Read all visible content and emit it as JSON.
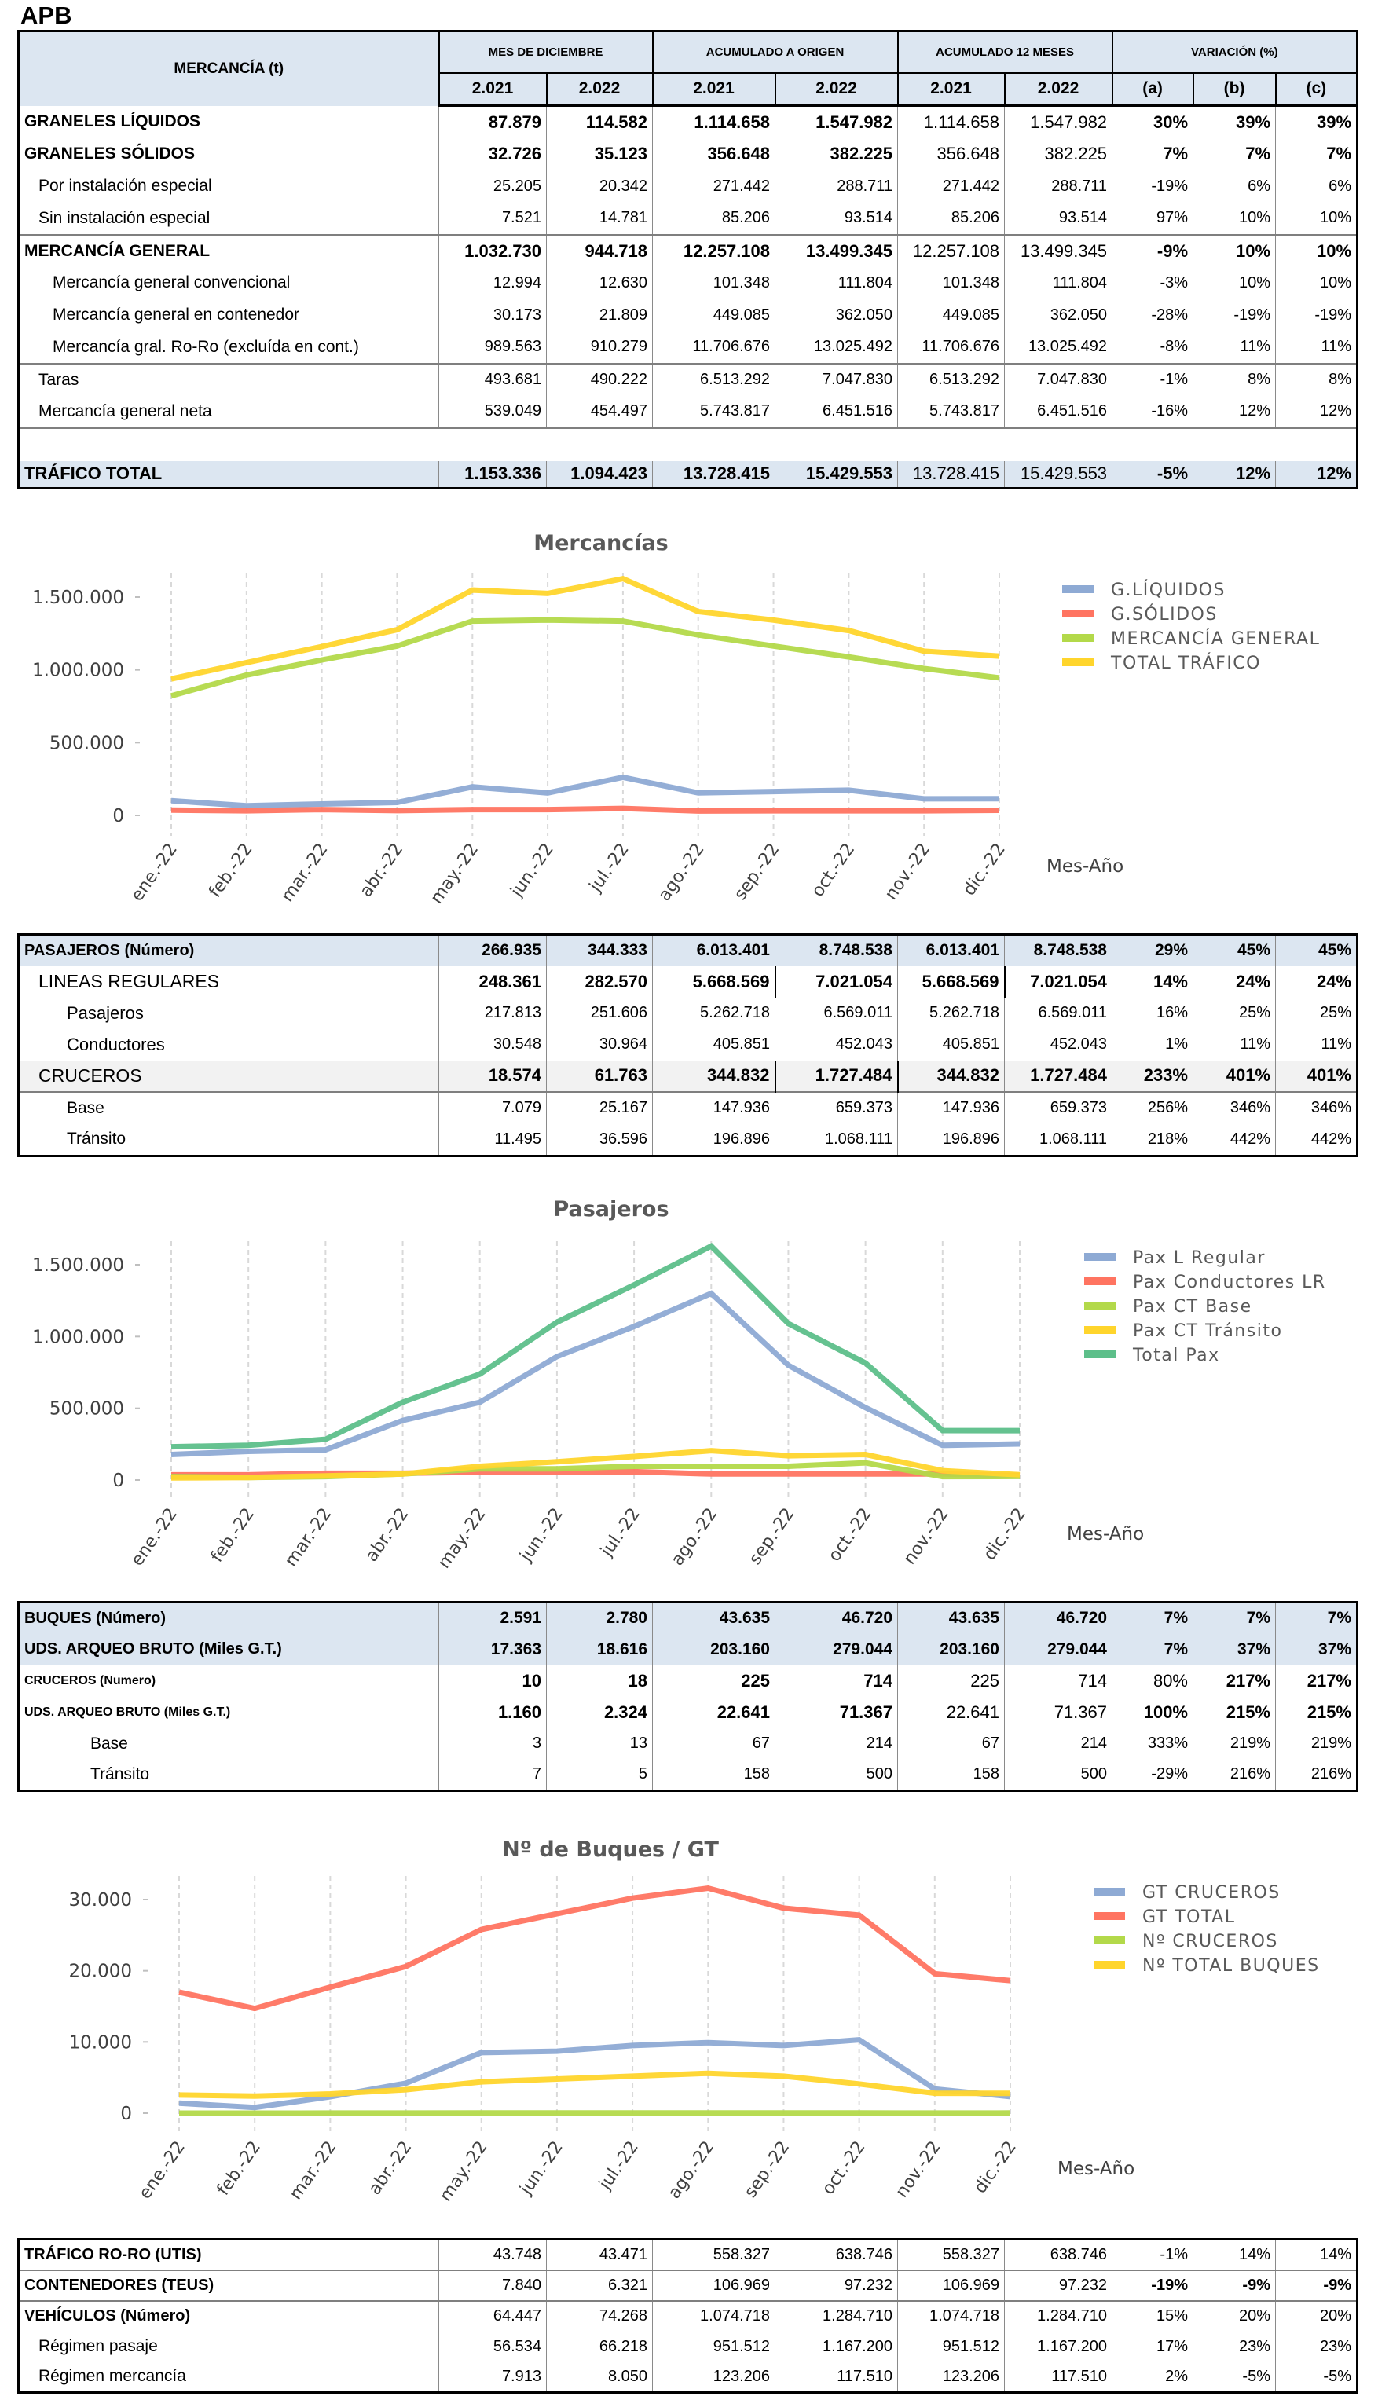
{
  "page_title": "APB",
  "merc_table": {
    "header": {
      "label": "MERCANCÍA (t)",
      "groups": [
        "MES DE DICIEMBRE",
        "ACUMULADO  A  ORIGEN",
        "ACUMULADO 12 MESES",
        "VARIACIÓN (%)"
      ],
      "subcols": [
        "2.021",
        "2.022",
        "2.021",
        "2.022",
        "2.021",
        "2.022",
        "(a)",
        "(b)",
        "(c)"
      ]
    },
    "rows": [
      {
        "label": "GRANELES LÍQUIDOS",
        "values": [
          "87.879",
          "114.582",
          "1.114.658",
          "1.547.982",
          "1.114.658",
          "1.547.982",
          "30%",
          "39%",
          "39%"
        ]
      },
      {
        "label": "GRANELES SÓLIDOS",
        "values": [
          "32.726",
          "35.123",
          "356.648",
          "382.225",
          "356.648",
          "382.225",
          "7%",
          "7%",
          "7%"
        ]
      },
      {
        "label": "Por instalación especial",
        "values": [
          "25.205",
          "20.342",
          "271.442",
          "288.711",
          "271.442",
          "288.711",
          "-19%",
          "6%",
          "6%"
        ]
      },
      {
        "label": "Sin instalación especial",
        "values": [
          "7.521",
          "14.781",
          "85.206",
          "93.514",
          "85.206",
          "93.514",
          "97%",
          "10%",
          "10%"
        ]
      },
      {
        "label": "MERCANCÍA GENERAL",
        "values": [
          "1.032.730",
          "944.718",
          "12.257.108",
          "13.499.345",
          "12.257.108",
          "13.499.345",
          "-9%",
          "10%",
          "10%"
        ]
      },
      {
        "label": "Mercancía general convencional",
        "values": [
          "12.994",
          "12.630",
          "101.348",
          "111.804",
          "101.348",
          "111.804",
          "-3%",
          "10%",
          "10%"
        ]
      },
      {
        "label": "Mercancía general en contenedor",
        "values": [
          "30.173",
          "21.809",
          "449.085",
          "362.050",
          "449.085",
          "362.050",
          "-28%",
          "-19%",
          "-19%"
        ]
      },
      {
        "label": "Mercancía gral. Ro-Ro (excluída en cont.)",
        "values": [
          "989.563",
          "910.279",
          "11.706.676",
          "13.025.492",
          "11.706.676",
          "13.025.492",
          "-8%",
          "11%",
          "11%"
        ]
      },
      {
        "label": "Taras",
        "values": [
          "493.681",
          "490.222",
          "6.513.292",
          "7.047.830",
          "6.513.292",
          "7.047.830",
          "-1%",
          "8%",
          "8%"
        ]
      },
      {
        "label": "Mercancía general neta",
        "values": [
          "539.049",
          "454.497",
          "5.743.817",
          "6.451.516",
          "5.743.817",
          "6.451.516",
          "-16%",
          "12%",
          "12%"
        ]
      },
      {
        "label": "TRÁFICO TOTAL",
        "values": [
          "1.153.336",
          "1.094.423",
          "13.728.415",
          "15.429.553",
          "13.728.415",
          "15.429.553",
          "-5%",
          "12%",
          "12%"
        ]
      }
    ]
  },
  "pax_table": {
    "rows": [
      {
        "label": "PASAJEROS (Número)",
        "values": [
          "266.935",
          "344.333",
          "6.013.401",
          "8.748.538",
          "6.013.401",
          "8.748.538",
          "29%",
          "45%",
          "45%"
        ]
      },
      {
        "label": "LINEAS REGULARES",
        "values": [
          "248.361",
          "282.570",
          "5.668.569",
          "7.021.054",
          "5.668.569",
          "7.021.054",
          "14%",
          "24%",
          "24%"
        ]
      },
      {
        "label": "Pasajeros",
        "values": [
          "217.813",
          "251.606",
          "5.262.718",
          "6.569.011",
          "5.262.718",
          "6.569.011",
          "16%",
          "25%",
          "25%"
        ]
      },
      {
        "label": "Conductores",
        "values": [
          "30.548",
          "30.964",
          "405.851",
          "452.043",
          "405.851",
          "452.043",
          "1%",
          "11%",
          "11%"
        ]
      },
      {
        "label": "CRUCEROS",
        "values": [
          "18.574",
          "61.763",
          "344.832",
          "1.727.484",
          "344.832",
          "1.727.484",
          "233%",
          "401%",
          "401%"
        ]
      },
      {
        "label": "Base",
        "values": [
          "7.079",
          "25.167",
          "147.936",
          "659.373",
          "147.936",
          "659.373",
          "256%",
          "346%",
          "346%"
        ]
      },
      {
        "label": "Tránsito",
        "values": [
          "11.495",
          "36.596",
          "196.896",
          "1.068.111",
          "196.896",
          "1.068.111",
          "218%",
          "442%",
          "442%"
        ]
      }
    ]
  },
  "buques_table": {
    "rows": [
      {
        "label": "BUQUES (Número)",
        "values": [
          "2.591",
          "2.780",
          "43.635",
          "46.720",
          "43.635",
          "46.720",
          "7%",
          "7%",
          "7%"
        ]
      },
      {
        "label": "UDS. ARQUEO BRUTO  (Miles G.T.)",
        "values": [
          "17.363",
          "18.616",
          "203.160",
          "279.044",
          "203.160",
          "279.044",
          "7%",
          "37%",
          "37%"
        ]
      },
      {
        "label": "CRUCEROS (Numero)",
        "values": [
          "10",
          "18",
          "225",
          "714",
          "225",
          "714",
          "80%",
          "217%",
          "217%"
        ]
      },
      {
        "label": "UDS. ARQUEO BRUTO  (Miles G.T.)",
        "values": [
          "1.160",
          "2.324",
          "22.641",
          "71.367",
          "22.641",
          "71.367",
          "100%",
          "215%",
          "215%"
        ]
      },
      {
        "label": "Base",
        "values": [
          "3",
          "13",
          "67",
          "214",
          "67",
          "214",
          "333%",
          "219%",
          "219%"
        ]
      },
      {
        "label": "Tránsito",
        "values": [
          "7",
          "5",
          "158",
          "500",
          "158",
          "500",
          "-29%",
          "216%",
          "216%"
        ]
      }
    ]
  },
  "otros_table": {
    "rows": [
      {
        "label": "TRÁFICO RO-RO (UTIS)",
        "values": [
          "43.748",
          "43.471",
          "558.327",
          "638.746",
          "558.327",
          "638.746",
          "-1%",
          "14%",
          "14%"
        ]
      },
      {
        "label": "CONTENEDORES (TEUS)",
        "values": [
          "7.840",
          "6.321",
          "106.969",
          "97.232",
          "106.969",
          "97.232",
          "-19%",
          "-9%",
          "-9%"
        ]
      },
      {
        "label": "VEHÍCULOS (Número)",
        "values": [
          "64.447",
          "74.268",
          "1.074.718",
          "1.284.710",
          "1.074.718",
          "1.284.710",
          "15%",
          "20%",
          "20%"
        ]
      },
      {
        "label": "Régimen pasaje",
        "values": [
          "56.534",
          "66.218",
          "951.512",
          "1.167.200",
          "951.512",
          "1.167.200",
          "17%",
          "23%",
          "23%"
        ]
      },
      {
        "label": "Régimen  mercancía",
        "values": [
          "7.913",
          "8.050",
          "123.206",
          "117.510",
          "123.206",
          "117.510",
          "2%",
          "-5%",
          "-5%"
        ]
      }
    ]
  },
  "chart_data": [
    {
      "type": "line",
      "title": "Mercancías",
      "xlabel": "Mes-Año",
      "ylabel": "",
      "categories": [
        "ene.-22",
        "feb.-22",
        "mar.-22",
        "abr.-22",
        "may.-22",
        "jun.-22",
        "jul.-22",
        "ago.-22",
        "sep.-22",
        "oct.-22",
        "nov.-22",
        "dic.-22"
      ],
      "ylim": [
        0,
        1750000
      ],
      "yticks": [
        0,
        500000,
        1000000,
        1500000
      ],
      "ytick_labels": [
        "0",
        "500.000",
        "1.000.000",
        "1.500.000"
      ],
      "grid": "vertical dashed",
      "legend_position": "right",
      "series": [
        {
          "name": "G.LÍQUIDOS",
          "color": "#8eaad4",
          "values": [
            101000,
            66000,
            78000,
            89000,
            196000,
            155000,
            262000,
            155000,
            164000,
            173000,
            114000,
            114582
          ]
        },
        {
          "name": "G.SÓLIDOS",
          "color": "#ff7461",
          "values": [
            36000,
            32000,
            40000,
            33000,
            40000,
            40000,
            48000,
            30000,
            32000,
            32000,
            32000,
            35123
          ]
        },
        {
          "name": "MERCANCÍA GENERAL",
          "color": "#b3d94a",
          "values": [
            822000,
            964000,
            1068000,
            1164000,
            1335000,
            1342000,
            1335000,
            1240000,
            1164000,
            1089000,
            1009000,
            944718
          ]
        },
        {
          "name": "TOTAL TRÁFICO",
          "color": "#ffd52c",
          "values": [
            938000,
            1050000,
            1160000,
            1276000,
            1548000,
            1525000,
            1626000,
            1400000,
            1342000,
            1270000,
            1128000,
            1094423
          ]
        }
      ]
    },
    {
      "type": "line",
      "title": "Pasajeros",
      "xlabel": "Mes-Año",
      "ylabel": "",
      "categories": [
        "ene.-22",
        "feb.-22",
        "mar.-22",
        "abr.-22",
        "may.-22",
        "jun.-22",
        "jul.-22",
        "ago.-22",
        "sep.-22",
        "oct.-22",
        "nov.-22",
        "dic.-22"
      ],
      "ylim": [
        0,
        1750000
      ],
      "yticks": [
        0,
        500000,
        1000000,
        1500000
      ],
      "ytick_labels": [
        "0",
        "500.000",
        "1.000.000",
        "1.500.000"
      ],
      "grid": "vertical dashed",
      "legend_position": "right",
      "series": [
        {
          "name": "Pax L Regular",
          "color": "#8eaad4",
          "values": [
            178000,
            200000,
            211000,
            415000,
            542000,
            860000,
            1070000,
            1300000,
            800000,
            505000,
            242000,
            251606
          ]
        },
        {
          "name": "Pax Conductores LR",
          "color": "#ff7461",
          "values": [
            36000,
            36000,
            47000,
            47000,
            55000,
            55000,
            58000,
            42000,
            42000,
            42000,
            42000,
            30964
          ]
        },
        {
          "name": "Pax CT Base",
          "color": "#b3d94a",
          "values": [
            24000,
            18000,
            24000,
            42000,
            78000,
            78000,
            96000,
            96000,
            96000,
            120000,
            24000,
            25167
          ]
        },
        {
          "name": "Pax CT Tránsito",
          "color": "#ffd52c",
          "values": [
            15000,
            18000,
            29000,
            42000,
            96000,
            127000,
            164000,
            205000,
            169000,
            178000,
            65000,
            36596
          ]
        },
        {
          "name": "Total Pax",
          "color": "#5dbf8a",
          "values": [
            232000,
            242000,
            284000,
            542000,
            738000,
            1100000,
            1360000,
            1630000,
            1090000,
            815000,
            345000,
            344333
          ]
        }
      ]
    },
    {
      "type": "line",
      "title": "Nº de Buques / GT",
      "xlabel": "Mes-Año",
      "ylabel": "",
      "categories": [
        "ene.-22",
        "feb.-22",
        "mar.-22",
        "abr.-22",
        "may.-22",
        "jun.-22",
        "jul.-22",
        "ago.-22",
        "sep.-22",
        "oct.-22",
        "nov.-22",
        "dic.-22"
      ],
      "ylim": [
        0,
        34000
      ],
      "yticks": [
        0,
        10000,
        20000,
        30000
      ],
      "ytick_labels": [
        "0",
        "10.000",
        "20.000",
        "30.000"
      ],
      "grid": "vertical dashed",
      "legend_position": "right",
      "series": [
        {
          "name": "GT CRUCEROS",
          "color": "#8eaad4",
          "values": [
            1400,
            800,
            2300,
            4200,
            8500,
            8700,
            9500,
            9900,
            9500,
            10300,
            3400,
            2324
          ]
        },
        {
          "name": "GT TOTAL",
          "color": "#ff7461",
          "values": [
            17000,
            14700,
            17700,
            20600,
            25800,
            28000,
            30200,
            31600,
            28800,
            27800,
            19600,
            18616
          ]
        },
        {
          "name": "Nº CRUCEROS",
          "color": "#b3d94a",
          "values": [
            5,
            3,
            6,
            14,
            30,
            30,
            35,
            34,
            30,
            27,
            8,
            18
          ]
        },
        {
          "name": "Nº TOTAL BUQUES",
          "color": "#ffd52c",
          "values": [
            2550,
            2400,
            2700,
            3300,
            4400,
            4800,
            5200,
            5600,
            5200,
            4100,
            2800,
            2780
          ]
        }
      ]
    }
  ]
}
